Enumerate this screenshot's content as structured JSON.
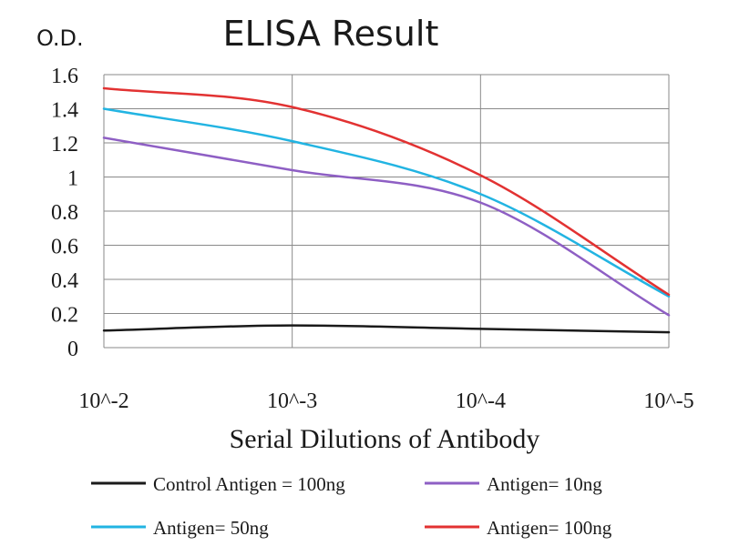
{
  "chart_data": {
    "type": "line",
    "title": "ELISA Result",
    "ylabel": "O.D.",
    "xlabel": "Serial Dilutions of Antibody",
    "categories": [
      "10^-2",
      "10^-3",
      "10^-4",
      "10^-5"
    ],
    "ylim": [
      0,
      1.6
    ],
    "yticks": [
      "0",
      "0.2",
      "0.4",
      "0.6",
      "0.8",
      "1",
      "1.2",
      "1.4",
      "1.6"
    ],
    "grid": true,
    "legend_position": "bottom",
    "series": [
      {
        "name": "Control Antigen = 100ng",
        "color": "#1a1a1a",
        "values": [
          0.1,
          0.13,
          0.11,
          0.09
        ]
      },
      {
        "name": "Antigen= 10ng",
        "color": "#8e5fc4",
        "values": [
          1.23,
          1.04,
          0.85,
          0.19
        ]
      },
      {
        "name": "Antigen= 50ng",
        "color": "#22b4e2",
        "values": [
          1.4,
          1.21,
          0.9,
          0.3
        ]
      },
      {
        "name": "Antigen= 100ng",
        "color": "#e23232",
        "values": [
          1.52,
          1.41,
          1.01,
          0.31
        ]
      }
    ]
  }
}
